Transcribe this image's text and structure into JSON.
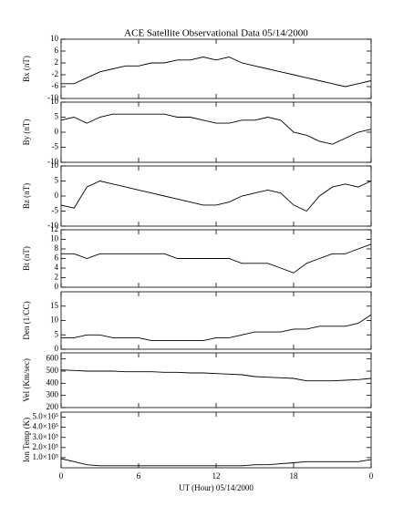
{
  "chart_data": [
    {
      "type": "line",
      "title": "ACE Satellite Observational Data   05/14/2000",
      "ylabel": "Bx (nT)",
      "color": "#000000",
      "x": [
        0,
        1,
        2,
        3,
        4,
        5,
        6,
        7,
        8,
        9,
        10,
        11,
        12,
        13,
        14,
        15,
        16,
        17,
        18,
        19,
        20,
        21,
        22,
        23,
        24
      ],
      "values": [
        -5,
        -5,
        -3,
        -1,
        0,
        1,
        1,
        2,
        2,
        3,
        3,
        4,
        3,
        4,
        2,
        1,
        0,
        -1,
        -2,
        -3,
        -4,
        -5,
        -6,
        -5,
        -4
      ],
      "xlim": [
        0,
        24
      ],
      "ylim": [
        -10,
        10
      ],
      "yticks": [
        -10,
        -6,
        -2,
        2,
        6,
        10
      ]
    },
    {
      "type": "line",
      "ylabel": "By (nT)",
      "color": "#000000",
      "x": [
        0,
        1,
        2,
        3,
        4,
        5,
        6,
        7,
        8,
        9,
        10,
        11,
        12,
        13,
        14,
        15,
        16,
        17,
        18,
        19,
        20,
        21,
        22,
        23,
        24
      ],
      "values": [
        4,
        5,
        3,
        5,
        6,
        6,
        6,
        6,
        6,
        5,
        5,
        4,
        3,
        3,
        4,
        4,
        5,
        4,
        0,
        -1,
        -3,
        -4,
        -2,
        0,
        1
      ],
      "xlim": [
        0,
        24
      ],
      "ylim": [
        -10,
        10
      ],
      "yticks": [
        -10,
        -5,
        0,
        5,
        10
      ]
    },
    {
      "type": "line",
      "ylabel": "Bz (nT)",
      "color": "#000000",
      "x": [
        0,
        1,
        2,
        3,
        4,
        5,
        6,
        7,
        8,
        9,
        10,
        11,
        12,
        13,
        14,
        15,
        16,
        17,
        18,
        19,
        20,
        21,
        22,
        23,
        24
      ],
      "values": [
        -3,
        -4,
        3,
        5,
        4,
        3,
        2,
        1,
        0,
        -1,
        -2,
        -3,
        -3,
        -2,
        0,
        1,
        2,
        1,
        -3,
        -5,
        0,
        3,
        4,
        3,
        5
      ],
      "xlim": [
        0,
        24
      ],
      "ylim": [
        -10,
        10
      ],
      "yticks": [
        -10,
        -5,
        0,
        5,
        10
      ]
    },
    {
      "type": "line",
      "ylabel": "Bt (nT)",
      "color": "#000000",
      "x": [
        0,
        1,
        2,
        3,
        4,
        5,
        6,
        7,
        8,
        9,
        10,
        11,
        12,
        13,
        14,
        15,
        16,
        17,
        18,
        19,
        20,
        21,
        22,
        23,
        24
      ],
      "values": [
        7,
        7,
        6,
        7,
        7,
        7,
        7,
        7,
        7,
        6,
        6,
        6,
        6,
        6,
        5,
        5,
        5,
        4,
        3,
        5,
        6,
        7,
        7,
        8,
        9
      ],
      "xlim": [
        0,
        24
      ],
      "ylim": [
        0,
        12
      ],
      "yticks": [
        0,
        2,
        4,
        6,
        8,
        10,
        12
      ]
    },
    {
      "type": "line",
      "ylabel": "Den (1/CC)",
      "color": "#000000",
      "x": [
        0,
        1,
        2,
        3,
        4,
        5,
        6,
        7,
        8,
        9,
        10,
        11,
        12,
        13,
        14,
        15,
        16,
        17,
        18,
        19,
        20,
        21,
        22,
        23,
        24
      ],
      "values": [
        4,
        4,
        5,
        5,
        4,
        4,
        4,
        3,
        3,
        3,
        3,
        3,
        4,
        4,
        5,
        6,
        6,
        6,
        7,
        7,
        8,
        8,
        8,
        9,
        12
      ],
      "xlim": [
        0,
        24
      ],
      "ylim": [
        0,
        20
      ],
      "yticks": [
        0,
        5,
        10,
        15
      ]
    },
    {
      "type": "line",
      "ylabel": "Vel (Km/sec)",
      "color": "#000000",
      "x": [
        0,
        1,
        2,
        3,
        4,
        5,
        6,
        7,
        8,
        9,
        10,
        11,
        12,
        13,
        14,
        15,
        16,
        17,
        18,
        19,
        20,
        21,
        22,
        23,
        24
      ],
      "values": [
        510,
        505,
        500,
        500,
        500,
        495,
        495,
        495,
        490,
        490,
        485,
        485,
        480,
        475,
        470,
        455,
        450,
        445,
        440,
        420,
        420,
        420,
        425,
        430,
        440
      ],
      "xlim": [
        0,
        24
      ],
      "ylim": [
        200,
        650
      ],
      "yticks": [
        200,
        300,
        400,
        500,
        600
      ]
    },
    {
      "type": "line",
      "ylabel": "Ion Temp (K)",
      "xlabel": "UT (Hour)   05/14/2000",
      "color": "#000000",
      "x": [
        0,
        1,
        2,
        3,
        4,
        5,
        6,
        7,
        8,
        9,
        10,
        11,
        12,
        13,
        14,
        15,
        16,
        17,
        18,
        19,
        20,
        21,
        22,
        23,
        24
      ],
      "values": [
        90000,
        60000,
        30000,
        20000,
        20000,
        20000,
        20000,
        20000,
        20000,
        20000,
        20000,
        20000,
        20000,
        20000,
        20000,
        30000,
        30000,
        40000,
        50000,
        60000,
        60000,
        60000,
        60000,
        60000,
        80000
      ],
      "xlim": [
        0,
        24
      ],
      "ylim": [
        0,
        550000
      ],
      "yticks": [
        {
          "value": 100000,
          "label": "1.0×10⁵"
        },
        {
          "value": 200000,
          "label": "2.0×10⁵"
        },
        {
          "value": 300000,
          "label": "3.0×10⁵"
        },
        {
          "value": 400000,
          "label": "4.0×10⁵"
        },
        {
          "value": 500000,
          "label": "5.0×10⁵"
        }
      ],
      "xticks": [
        0,
        6,
        12,
        18,
        {
          "value": 24,
          "label": "0"
        }
      ]
    }
  ]
}
